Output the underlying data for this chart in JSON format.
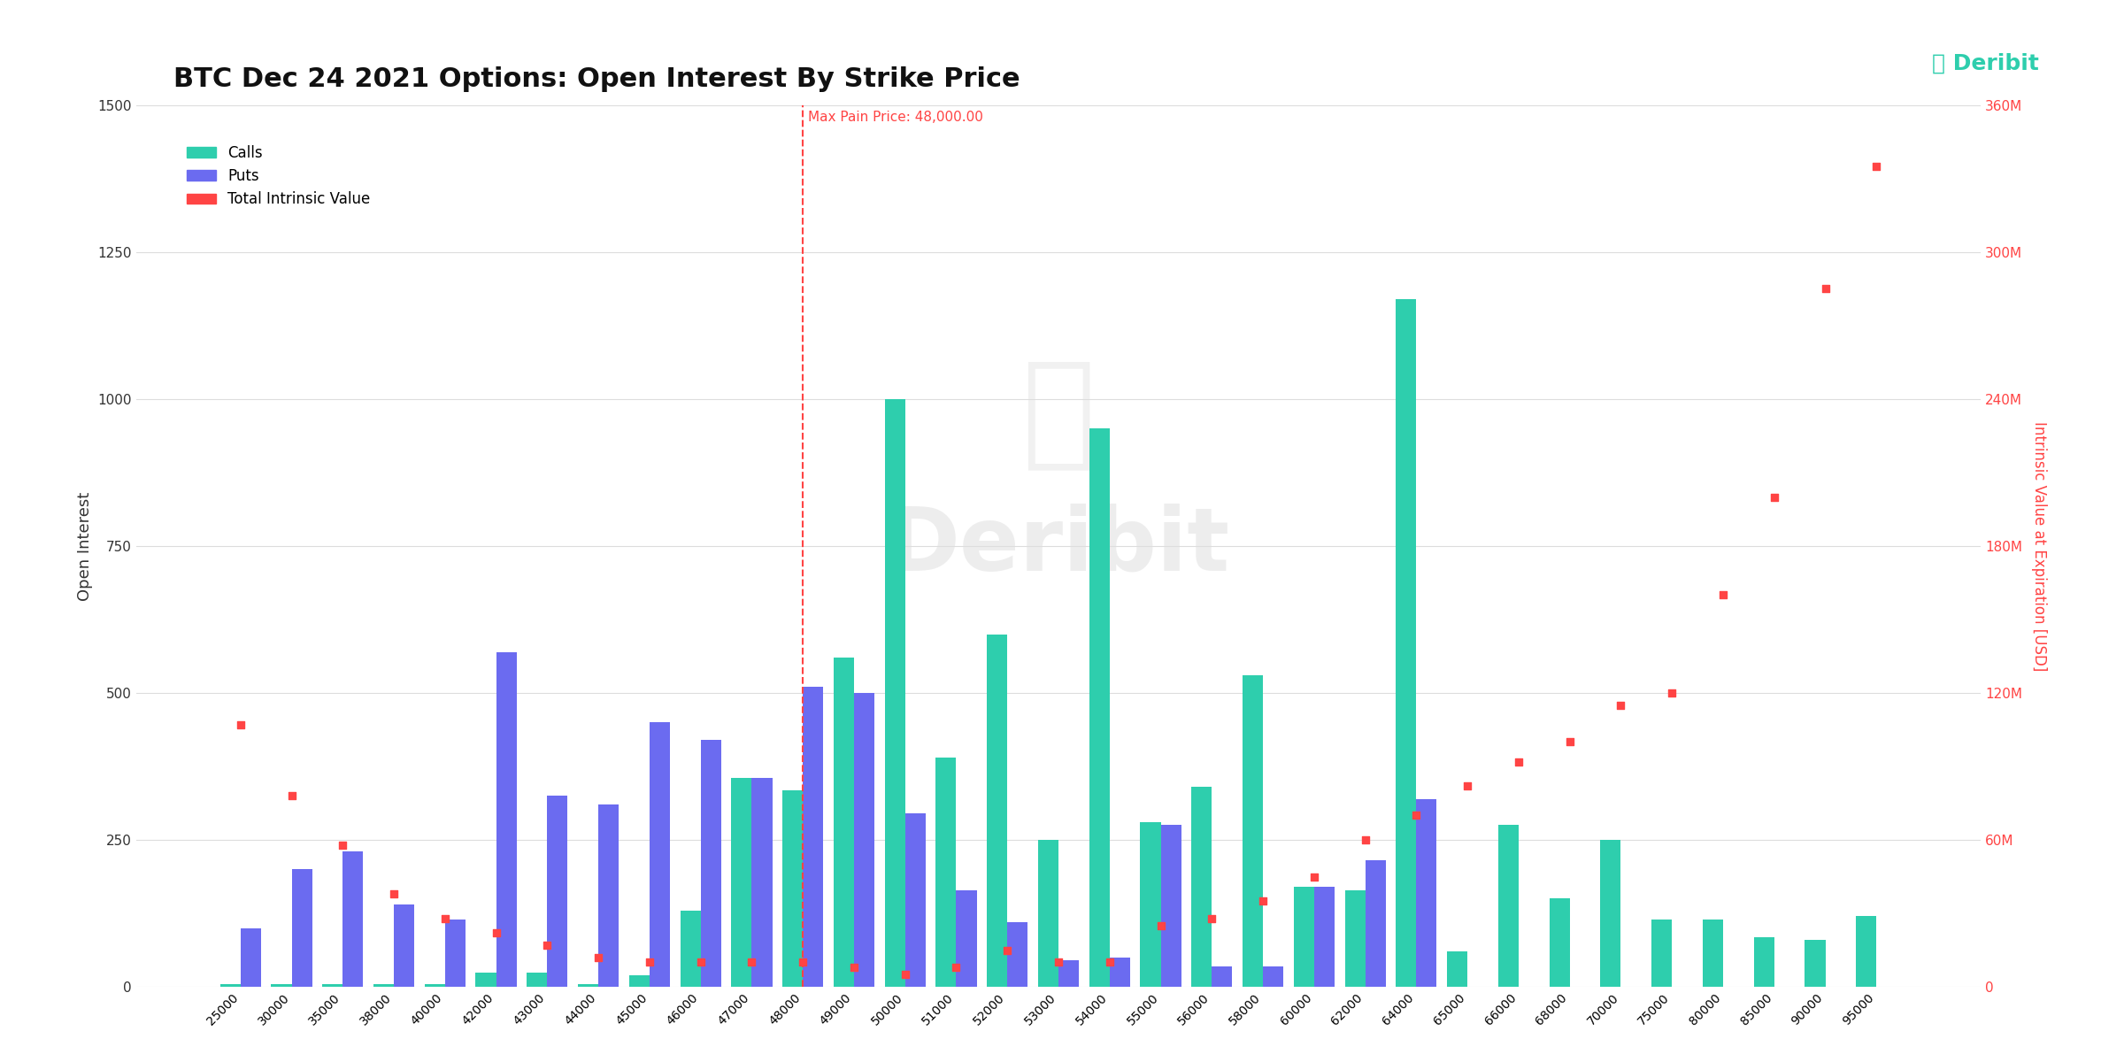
{
  "title": "BTC Dec 24 2021 Options: Open Interest By Strike Price",
  "strikes": [
    25000,
    30000,
    35000,
    38000,
    40000,
    42000,
    43000,
    44000,
    45000,
    46000,
    47000,
    48000,
    49000,
    50000,
    51000,
    52000,
    53000,
    54000,
    55000,
    56000,
    58000,
    60000,
    62000,
    64000,
    65000,
    66000,
    68000,
    70000,
    75000,
    80000,
    85000,
    90000,
    95000
  ],
  "calls": [
    5,
    5,
    5,
    5,
    5,
    25,
    25,
    5,
    20,
    130,
    355,
    335,
    560,
    1000,
    390,
    600,
    250,
    950,
    280,
    340,
    530,
    170,
    165,
    1170,
    60,
    275,
    150,
    250,
    115,
    115,
    85,
    80,
    120
  ],
  "puts": [
    100,
    200,
    230,
    140,
    115,
    570,
    325,
    310,
    450,
    420,
    355,
    510,
    500,
    295,
    165,
    110,
    45,
    50,
    275,
    35,
    35,
    170,
    215,
    320,
    0,
    0,
    0,
    0,
    0,
    0,
    0,
    0,
    0
  ],
  "intrinsic": [
    100,
    80,
    50,
    35,
    25,
    20,
    15,
    10,
    10,
    10,
    10,
    10,
    10,
    8,
    10,
    15,
    10,
    10,
    25,
    30,
    35,
    45,
    60,
    75,
    85,
    95,
    100,
    115,
    135,
    165,
    200,
    240,
    330
  ],
  "intrinsic_usd": [
    107,
    78,
    58,
    38,
    28,
    22,
    17,
    12,
    10,
    10,
    10,
    10,
    8,
    5,
    8,
    15,
    10,
    10,
    25,
    28,
    35,
    45,
    60,
    70,
    82,
    92,
    100,
    115,
    120,
    160,
    200,
    285,
    335
  ],
  "max_pain_strike": 48000,
  "max_pain_label": "Max Pain Price: 48,000.00",
  "color_calls": "#2ECEAD",
  "color_puts": "#6B6BF0",
  "color_intrinsic": "#FF4444",
  "color_maxpain_line": "#FF4444",
  "ylabel_left": "Open Interest",
  "ylabel_right": "Intrinsic Value at Expiration [USD]",
  "ylim_left": [
    0,
    1500
  ],
  "ylim_right": [
    0,
    360
  ],
  "yticks_left": [
    0,
    250,
    500,
    750,
    1000,
    1250,
    1500
  ],
  "yticks_right_labels": [
    "0",
    "60M",
    "120M",
    "180M",
    "240M",
    "300M",
    "360M"
  ],
  "yticks_right_vals": [
    0,
    60,
    120,
    180,
    240,
    300,
    360
  ],
  "background_color": "#FFFFFF",
  "watermark": "Deribit",
  "logo_text": "Deribit",
  "bar_width": 0.4
}
